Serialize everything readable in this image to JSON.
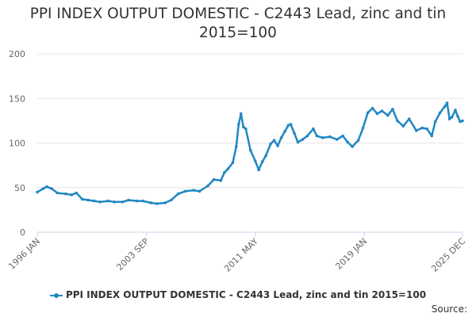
{
  "colors": {
    "series": "#1f88c3",
    "grid": "#e6e6e6",
    "axis": "#ccd6eb",
    "text": "#666666"
  },
  "credits": "Source:",
  "chart_data": {
    "type": "line",
    "title": "PPI INDEX OUTPUT DOMESTIC - C2443 Lead, zinc and tin\n2015=100",
    "ylim": [
      0,
      200
    ],
    "yticks": [
      0,
      50,
      100,
      150,
      200
    ],
    "xlim": [
      "1996-01",
      "2025-12"
    ],
    "xticks": [
      "1996 JAN",
      "2003 SEP",
      "2011 MAY",
      "2019 JAN",
      "2025 DEC"
    ],
    "grid": true,
    "legend_position": "bottom",
    "series": [
      {
        "name": "PPI INDEX OUTPUT DOMESTIC - C2443 Lead, zinc and tin 2015=100",
        "points": [
          [
            "1996-01",
            45
          ],
          [
            "1996-06",
            49
          ],
          [
            "1996-09",
            51
          ],
          [
            "1997-01",
            49
          ],
          [
            "1997-06",
            44
          ],
          [
            "1998-01",
            43
          ],
          [
            "1998-06",
            42
          ],
          [
            "1998-10",
            44
          ],
          [
            "1999-03",
            37
          ],
          [
            "1999-08",
            36
          ],
          [
            "2000-01",
            35
          ],
          [
            "2000-06",
            34
          ],
          [
            "2001-01",
            35
          ],
          [
            "2001-06",
            34
          ],
          [
            "2002-01",
            34
          ],
          [
            "2002-06",
            36
          ],
          [
            "2003-01",
            35
          ],
          [
            "2003-06",
            35
          ],
          [
            "2004-01",
            33
          ],
          [
            "2004-06",
            32
          ],
          [
            "2005-01",
            33
          ],
          [
            "2005-06",
            36
          ],
          [
            "2005-12",
            43
          ],
          [
            "2006-06",
            46
          ],
          [
            "2007-01",
            47
          ],
          [
            "2007-06",
            46
          ],
          [
            "2008-01",
            52
          ],
          [
            "2008-06",
            59
          ],
          [
            "2008-12",
            58
          ],
          [
            "2009-03",
            67
          ],
          [
            "2009-06",
            71
          ],
          [
            "2009-10",
            78
          ],
          [
            "2010-01",
            96
          ],
          [
            "2010-03",
            121
          ],
          [
            "2010-05",
            133
          ],
          [
            "2010-07",
            118
          ],
          [
            "2010-09",
            116
          ],
          [
            "2011-01",
            92
          ],
          [
            "2011-05",
            80
          ],
          [
            "2011-08",
            70
          ],
          [
            "2011-11",
            79
          ],
          [
            "2012-02",
            86
          ],
          [
            "2012-06",
            99
          ],
          [
            "2012-09",
            103
          ],
          [
            "2012-12",
            97
          ],
          [
            "2013-03",
            106
          ],
          [
            "2013-06",
            113
          ],
          [
            "2013-09",
            120
          ],
          [
            "2013-11",
            121
          ],
          [
            "2014-02",
            111
          ],
          [
            "2014-05",
            101
          ],
          [
            "2014-09",
            104
          ],
          [
            "2015-01",
            108
          ],
          [
            "2015-06",
            116
          ],
          [
            "2015-09",
            108
          ],
          [
            "2016-02",
            106
          ],
          [
            "2016-08",
            107
          ],
          [
            "2017-02",
            104
          ],
          [
            "2017-07",
            108
          ],
          [
            "2017-11",
            101
          ],
          [
            "2018-03",
            96
          ],
          [
            "2018-08",
            103
          ],
          [
            "2018-12",
            117
          ],
          [
            "2019-04",
            134
          ],
          [
            "2019-08",
            139
          ],
          [
            "2019-12",
            133
          ],
          [
            "2020-04",
            136
          ],
          [
            "2020-09",
            131
          ],
          [
            "2021-01",
            138
          ],
          [
            "2021-05",
            125
          ],
          [
            "2021-10",
            119
          ],
          [
            "2022-03",
            127
          ],
          [
            "2022-09",
            114
          ],
          [
            "2023-02",
            117
          ],
          [
            "2023-06",
            116
          ],
          [
            "2023-10",
            108
          ],
          [
            "2024-01",
            124
          ],
          [
            "2024-05",
            134
          ],
          [
            "2024-09",
            141
          ],
          [
            "2024-11",
            145
          ],
          [
            "2025-01",
            127
          ],
          [
            "2025-03",
            129
          ],
          [
            "2025-06",
            137
          ],
          [
            "2025-08",
            130
          ],
          [
            "2025-10",
            124
          ],
          [
            "2025-12",
            125
          ]
        ]
      }
    ]
  }
}
